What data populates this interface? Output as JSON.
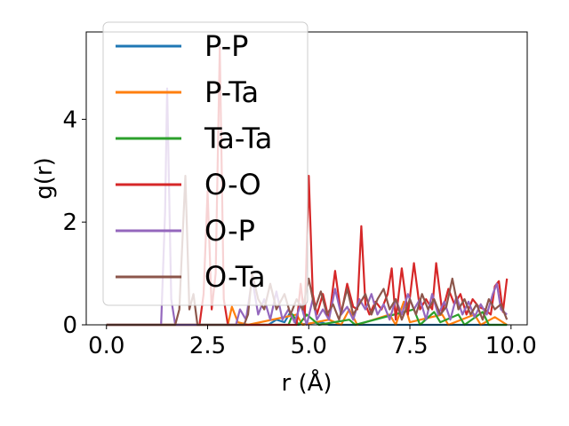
{
  "chart_data": {
    "type": "line",
    "xlabel": "r (Å)",
    "ylabel": "g(r)",
    "xlim": [
      -0.5,
      10.4
    ],
    "ylim": [
      0,
      5.7
    ],
    "xticks": [
      0.0,
      2.5,
      5.0,
      7.5,
      10.0
    ],
    "xtick_labels": [
      "0.0",
      "2.5",
      "5.0",
      "7.5",
      "10.0"
    ],
    "yticks": [
      0,
      2,
      4
    ],
    "ytick_labels": [
      "0",
      "2",
      "4"
    ],
    "grid": false,
    "legend_position": "upper-left",
    "series": [
      {
        "name": "P-P",
        "color": "#1f77b4",
        "points": [
          [
            0,
            0
          ],
          [
            4.0,
            0
          ],
          [
            4.2,
            0.1
          ],
          [
            4.4,
            0.05
          ],
          [
            4.55,
            0.25
          ],
          [
            4.7,
            0
          ],
          [
            5.3,
            0.05
          ],
          [
            5.5,
            0
          ],
          [
            9.9,
            0
          ]
        ]
      },
      {
        "name": "P-Ta",
        "color": "#ff7f0e",
        "points": [
          [
            0,
            0
          ],
          [
            3.0,
            0
          ],
          [
            3.1,
            0.35
          ],
          [
            3.25,
            0.05
          ],
          [
            3.5,
            0
          ],
          [
            4.7,
            0.2
          ],
          [
            4.85,
            0
          ],
          [
            5.5,
            0.1
          ],
          [
            5.8,
            0
          ],
          [
            6.0,
            0.3
          ],
          [
            6.2,
            0
          ],
          [
            7.0,
            0.2
          ],
          [
            7.15,
            0
          ],
          [
            7.35,
            0.45
          ],
          [
            7.5,
            0.05
          ],
          [
            8.3,
            0.2
          ],
          [
            8.45,
            0
          ],
          [
            9.1,
            0.2
          ],
          [
            9.25,
            0
          ],
          [
            9.6,
            0.15
          ],
          [
            9.9,
            0
          ]
        ]
      },
      {
        "name": "Ta-Ta",
        "color": "#2ca02c",
        "points": [
          [
            0,
            0
          ],
          [
            4.5,
            0
          ],
          [
            4.6,
            0.2
          ],
          [
            4.75,
            0
          ],
          [
            4.95,
            0.2
          ],
          [
            5.1,
            0.1
          ],
          [
            5.25,
            0
          ],
          [
            6.0,
            0.1
          ],
          [
            6.15,
            0
          ],
          [
            7.6,
            0.3
          ],
          [
            7.75,
            0
          ],
          [
            8.1,
            0.25
          ],
          [
            8.25,
            0.05
          ],
          [
            8.7,
            0.2
          ],
          [
            8.85,
            0
          ],
          [
            9.3,
            0.25
          ],
          [
            9.45,
            0
          ],
          [
            9.9,
            0
          ]
        ]
      },
      {
        "name": "O-O",
        "color": "#d62728",
        "points": [
          [
            0,
            0
          ],
          [
            2.3,
            0
          ],
          [
            2.4,
            0.6
          ],
          [
            2.5,
            2.6
          ],
          [
            2.6,
            0.3
          ],
          [
            2.7,
            1.0
          ],
          [
            2.8,
            5.4
          ],
          [
            2.9,
            0.5
          ],
          [
            3.0,
            0
          ],
          [
            4.7,
            0
          ],
          [
            4.8,
            0.8
          ],
          [
            4.9,
            0.1
          ],
          [
            5.0,
            2.9
          ],
          [
            5.1,
            0.6
          ],
          [
            5.2,
            0.2
          ],
          [
            5.35,
            0.6
          ],
          [
            5.5,
            0.1
          ],
          [
            5.65,
            1.05
          ],
          [
            5.8,
            0.2
          ],
          [
            5.95,
            0.8
          ],
          [
            6.1,
            0.35
          ],
          [
            6.2,
            0.3
          ],
          [
            6.3,
            1.92
          ],
          [
            6.4,
            0.4
          ],
          [
            6.5,
            0.2
          ],
          [
            6.65,
            0.45
          ],
          [
            6.8,
            0.3
          ],
          [
            6.95,
            0.6
          ],
          [
            7.05,
            1.1
          ],
          [
            7.15,
            0.1
          ],
          [
            7.3,
            1.1
          ],
          [
            7.45,
            0.2
          ],
          [
            7.6,
            1.2
          ],
          [
            7.75,
            0.3
          ],
          [
            7.9,
            0.5
          ],
          [
            8.05,
            0.3
          ],
          [
            8.15,
            1.2
          ],
          [
            8.3,
            0.25
          ],
          [
            8.45,
            0.7
          ],
          [
            8.6,
            0.4
          ],
          [
            8.75,
            0.6
          ],
          [
            8.9,
            0.2
          ],
          [
            9.05,
            0.5
          ],
          [
            9.2,
            0.35
          ],
          [
            9.35,
            0.3
          ],
          [
            9.5,
            0.2
          ],
          [
            9.6,
            0.75
          ],
          [
            9.7,
            0.85
          ],
          [
            9.8,
            0.25
          ],
          [
            9.9,
            0.9
          ]
        ]
      },
      {
        "name": "O-P",
        "color": "#9467bd",
        "points": [
          [
            0,
            0
          ],
          [
            1.35,
            0
          ],
          [
            1.45,
            2.2
          ],
          [
            1.5,
            4.6
          ],
          [
            1.6,
            0.5
          ],
          [
            1.7,
            0
          ],
          [
            3.2,
            0
          ],
          [
            3.3,
            0.3
          ],
          [
            3.45,
            0.1
          ],
          [
            3.6,
            0.9
          ],
          [
            3.75,
            0.2
          ],
          [
            3.9,
            0.5
          ],
          [
            4.05,
            0.1
          ],
          [
            4.2,
            0.65
          ],
          [
            4.35,
            0.1
          ],
          [
            4.5,
            0.3
          ],
          [
            4.65,
            0.05
          ],
          [
            4.8,
            0.4
          ],
          [
            4.95,
            0
          ],
          [
            5.1,
            0.5
          ],
          [
            5.2,
            0.1
          ],
          [
            5.35,
            0.3
          ],
          [
            5.5,
            0.1
          ],
          [
            5.65,
            0.7
          ],
          [
            5.8,
            0.2
          ],
          [
            5.95,
            0.35
          ],
          [
            6.1,
            0.1
          ],
          [
            6.25,
            0.5
          ],
          [
            6.4,
            0.3
          ],
          [
            6.55,
            0.6
          ],
          [
            6.7,
            0.2
          ],
          [
            6.85,
            0.4
          ],
          [
            7.0,
            0.1
          ],
          [
            7.15,
            0.5
          ],
          [
            7.3,
            0.2
          ],
          [
            7.45,
            0.6
          ],
          [
            7.6,
            0.3
          ],
          [
            7.75,
            0.5
          ],
          [
            7.9,
            0.1
          ],
          [
            8.05,
            0.6
          ],
          [
            8.2,
            0.2
          ],
          [
            8.35,
            0.45
          ],
          [
            8.5,
            0.1
          ],
          [
            8.65,
            0.55
          ],
          [
            8.8,
            0.2
          ],
          [
            8.95,
            0.45
          ],
          [
            9.1,
            0.15
          ],
          [
            9.25,
            0.4
          ],
          [
            9.4,
            0.2
          ],
          [
            9.55,
            0.6
          ],
          [
            9.65,
            0.8
          ],
          [
            9.75,
            0.3
          ],
          [
            9.9,
            0.2
          ]
        ]
      },
      {
        "name": "O-Ta",
        "color": "#8c564b",
        "points": [
          [
            0,
            0
          ],
          [
            1.7,
            0
          ],
          [
            1.8,
            0.3
          ],
          [
            1.95,
            2.9
          ],
          [
            2.05,
            0.3
          ],
          [
            2.15,
            0.6
          ],
          [
            2.25,
            0
          ],
          [
            3.4,
            0
          ],
          [
            3.5,
            0.2
          ],
          [
            3.6,
            1.0
          ],
          [
            3.75,
            0.5
          ],
          [
            3.9,
            0.3
          ],
          [
            4.05,
            0.8
          ],
          [
            4.2,
            0.3
          ],
          [
            4.4,
            0.6
          ],
          [
            4.55,
            0.2
          ],
          [
            4.7,
            0.5
          ],
          [
            4.85,
            0.3
          ],
          [
            5.0,
            0.9
          ],
          [
            5.15,
            0.3
          ],
          [
            5.3,
            0.65
          ],
          [
            5.45,
            0.2
          ],
          [
            5.6,
            0.4
          ],
          [
            5.75,
            0.1
          ],
          [
            5.95,
            0.7
          ],
          [
            6.1,
            0.2
          ],
          [
            6.25,
            0.4
          ],
          [
            6.4,
            0.6
          ],
          [
            6.55,
            0.2
          ],
          [
            6.7,
            0.5
          ],
          [
            6.85,
            0.7
          ],
          [
            7.0,
            0.3
          ],
          [
            7.15,
            0.5
          ],
          [
            7.3,
            0.1
          ],
          [
            7.5,
            0.5
          ],
          [
            7.65,
            0.2
          ],
          [
            7.8,
            0.6
          ],
          [
            7.95,
            0.3
          ],
          [
            8.1,
            0.5
          ],
          [
            8.25,
            0.2
          ],
          [
            8.4,
            0.35
          ],
          [
            8.55,
            0.9
          ],
          [
            8.7,
            0.3
          ],
          [
            8.85,
            0.5
          ],
          [
            9.0,
            0.2
          ],
          [
            9.15,
            0.4
          ],
          [
            9.3,
            0.1
          ],
          [
            9.45,
            0.5
          ],
          [
            9.6,
            0.3
          ],
          [
            9.75,
            0.4
          ],
          [
            9.9,
            0.1
          ]
        ]
      }
    ]
  }
}
